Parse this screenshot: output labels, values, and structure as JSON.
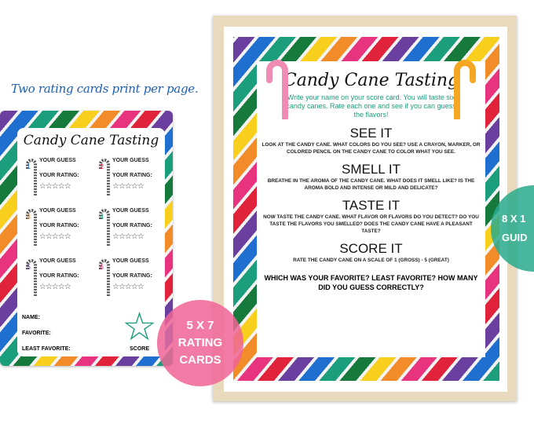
{
  "tagline": "Two rating cards print per page.",
  "card": {
    "title": "Candy Cane Tasting",
    "items": [
      {
        "num": "1",
        "color": "#1f6fd0"
      },
      {
        "num": "2",
        "color": "#e0223a"
      },
      {
        "num": "3",
        "color": "#f28c28"
      },
      {
        "num": "4",
        "color": "#1b9e7b"
      },
      {
        "num": "5",
        "color": "#6b3fa0"
      },
      {
        "num": "6",
        "color": "#e8347e"
      }
    ],
    "guess_label": "YOUR GUESS",
    "rating_label": "YOUR RATING:",
    "stars": "☆☆☆☆☆",
    "name_label": "NAME:",
    "favorite_label": "FAVORITE:",
    "least_label": "LEAST FAVORITE:",
    "score_label": "SCORE"
  },
  "guide": {
    "title": "Candy Cane Tasting",
    "intro": "Write your name on your score card.  You will taste six candy canes.  Rate each one and see if you can guess the flavors!",
    "sections": [
      {
        "heading": "SEE IT",
        "text": "LOOK AT THE CANDY CANE. WHAT COLORS DO YOU SEE? USE A CRAYON, MARKER, OR COLORED PENCIL ON THE CANDY CANE TO COLOR WHAT YOU SEE."
      },
      {
        "heading": "SMELL IT",
        "text": "BREATHE IN THE AROMA OF THE CANDY CANE. WHAT DOES IT SMELL LIKE? IS THE AROMA BOLD AND INTENSE OR MILD AND DELICATE?"
      },
      {
        "heading": "TASTE IT",
        "text": "NOW TASTE THE CANDY CANE.  WHAT FLAVOR OR FLAVORS DO YOU DETECT? DO YOU TASTE THE FLAVORS YOU SMELLED? DOES THE CANDY CANE HAVE A PLEASANT TASTE?"
      },
      {
        "heading": "SCORE IT",
        "text": "RATE THE CANDY CANE ON A SCALE OF 1 (GROSS) - 5 (GREAT)"
      }
    ],
    "question": "WHICH WAS YOUR FAVORITE? LEAST FAVORITE? HOW MANY DID YOU GUESS CORRECTLY?"
  },
  "badges": {
    "pink": [
      "5 X 7",
      "RATING",
      "CARDS"
    ],
    "teal": [
      "8 X 1",
      "GUID"
    ]
  }
}
